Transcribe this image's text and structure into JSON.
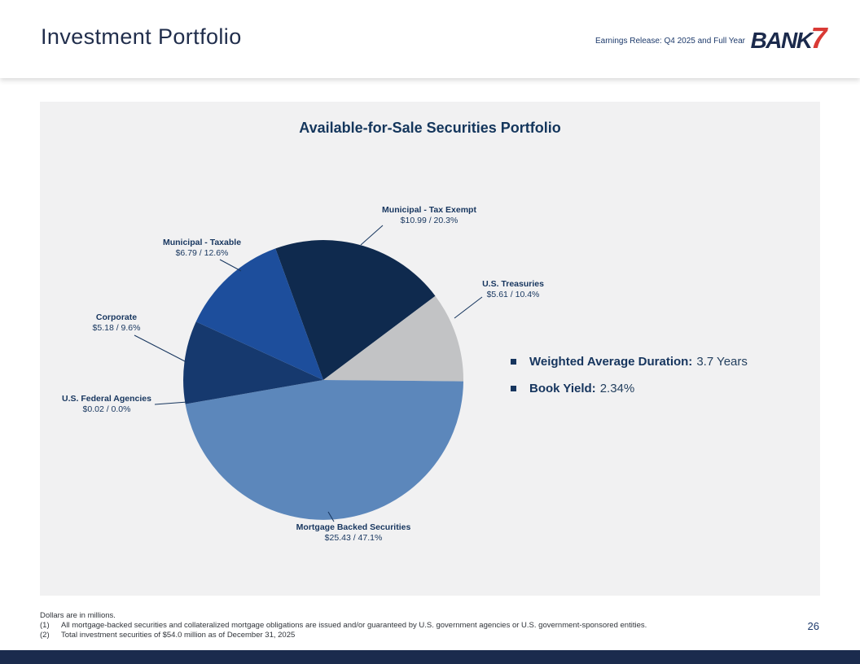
{
  "header": {
    "title": "Investment Portfolio",
    "release_note": "Earnings Release: Q4 2025 and Full Year",
    "logo": {
      "text": "BANK",
      "accent": "7"
    }
  },
  "slide": {
    "title": "Available-for-Sale Securities Portfolio",
    "bullets": [
      {
        "label": "Weighted Average Duration:",
        "value": "3.7 Years"
      },
      {
        "label": "Book Yield:",
        "value": "2.34%"
      }
    ]
  },
  "chart_data": {
    "type": "pie",
    "title": "Available-for-Sale Securities Portfolio",
    "units": "USD millions",
    "start_angle_deg": -20,
    "direction": "clockwise",
    "total_label": "$54.0 million total investment securities",
    "segments": [
      {
        "label": "Municipal - Tax Exempt",
        "value": 10.99,
        "pct": 20.3,
        "value_text": "$10.99 / 20.3%",
        "color": "#0f2a4e"
      },
      {
        "label": "U.S. Treasuries",
        "value": 5.61,
        "pct": 10.4,
        "value_text": "$5.61 / 10.4%",
        "color": "#c2c3c5"
      },
      {
        "label": "Mortgage Backed Securities",
        "value": 25.43,
        "pct": 47.1,
        "value_text": "$25.43 / 47.1%",
        "color": "#5c87bb"
      },
      {
        "label": "U.S. Federal Agencies",
        "value": 0.02,
        "pct": 0.0,
        "value_text": "$0.02 / 0.0%",
        "color": "#2a5aa0"
      },
      {
        "label": "Corporate",
        "value": 5.18,
        "pct": 9.6,
        "value_text": "$5.18 / 9.6%",
        "color": "#16396e"
      },
      {
        "label": "Municipal - Taxable",
        "value": 6.79,
        "pct": 12.6,
        "value_text": "$6.79 / 12.6%",
        "color": "#1d4e9c"
      }
    ]
  },
  "footer": {
    "note": "Dollars are in millions.",
    "footnotes": [
      {
        "num": "(1)",
        "text": "All mortgage-backed securities and collateralized mortgage obligations are issued and/or guaranteed by U.S. government agencies or U.S. government-sponsored entities."
      },
      {
        "num": "(2)",
        "text": "Total investment securities of $54.0 million as of December 31, 2025"
      }
    ],
    "page_number": "26"
  }
}
